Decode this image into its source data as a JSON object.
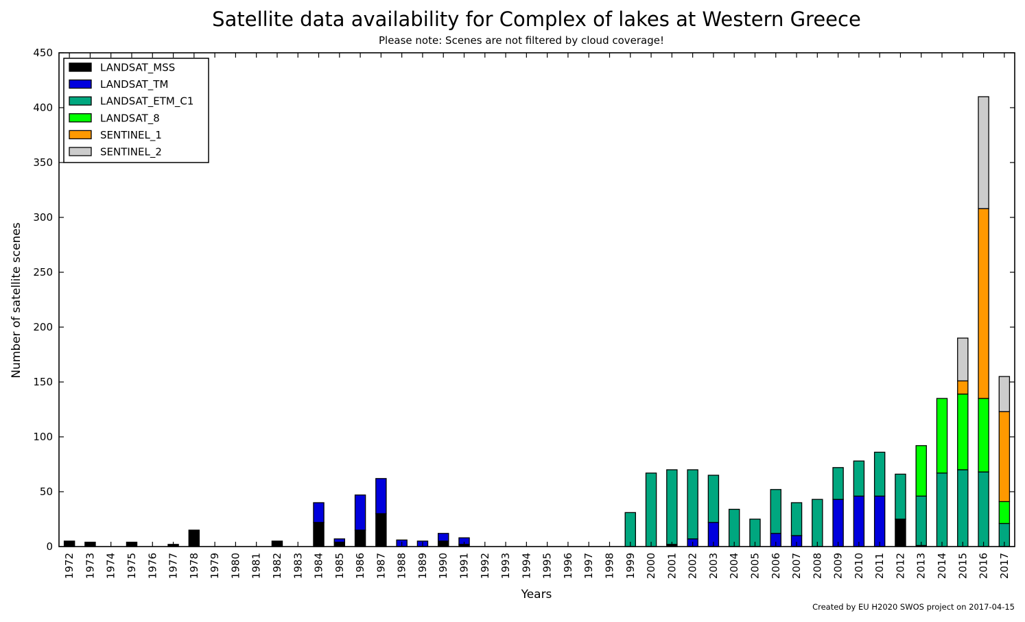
{
  "chart_data": {
    "type": "bar",
    "stacked": true,
    "title": "Satellite data availability for Complex of lakes at Western Greece",
    "subtitle": "Please note: Scenes are not filtered by cloud coverage!",
    "xlabel": "Years",
    "ylabel": "Number of satellite scenes",
    "ylim": [
      0,
      450
    ],
    "yticks": [
      0,
      50,
      100,
      150,
      200,
      250,
      300,
      350,
      400,
      450
    ],
    "legend_position": "top-left",
    "credit": "Created by EU H2020 SWOS project on 2017-04-15",
    "categories": [
      "1972",
      "1973",
      "1974",
      "1975",
      "1976",
      "1977",
      "1978",
      "1979",
      "1980",
      "1981",
      "1982",
      "1983",
      "1984",
      "1985",
      "1986",
      "1987",
      "1988",
      "1989",
      "1990",
      "1991",
      "1992",
      "1993",
      "1994",
      "1995",
      "1996",
      "1997",
      "1998",
      "1999",
      "2000",
      "2001",
      "2002",
      "2003",
      "2004",
      "2005",
      "2006",
      "2007",
      "2008",
      "2009",
      "2010",
      "2011",
      "2012",
      "2013",
      "2014",
      "2015",
      "2016",
      "2017"
    ],
    "series": [
      {
        "name": "LANDSAT_MSS",
        "color": "#000000",
        "values": [
          5,
          4,
          0,
          4,
          0,
          2,
          15,
          0,
          0,
          0,
          5,
          0,
          22,
          4,
          15,
          30,
          0,
          0,
          5,
          2,
          0,
          0,
          0,
          0,
          0,
          0,
          0,
          0,
          0,
          2,
          0,
          0,
          0,
          0,
          0,
          0,
          0,
          0,
          0,
          0,
          25,
          1,
          0,
          0,
          0,
          0
        ]
      },
      {
        "name": "LANDSAT_TM",
        "color": "#0000dd",
        "values": [
          0,
          0,
          0,
          0,
          0,
          0,
          0,
          0,
          0,
          0,
          0,
          0,
          18,
          3,
          32,
          32,
          6,
          5,
          7,
          6,
          0,
          0,
          0,
          0,
          0,
          0,
          0,
          0,
          0,
          0,
          7,
          22,
          0,
          0,
          12,
          10,
          0,
          43,
          46,
          46,
          0,
          0,
          0,
          0,
          0,
          0
        ]
      },
      {
        "name": "LANDSAT_ETM_C1",
        "color": "#00a77f",
        "values": [
          0,
          0,
          0,
          0,
          0,
          0,
          0,
          0,
          0,
          0,
          0,
          0,
          0,
          0,
          0,
          0,
          0,
          0,
          0,
          0,
          0,
          0,
          0,
          0,
          0,
          0,
          0,
          31,
          67,
          68,
          63,
          43,
          34,
          25,
          40,
          30,
          43,
          29,
          32,
          40,
          41,
          45,
          67,
          70,
          68,
          21
        ]
      },
      {
        "name": "LANDSAT_8",
        "color": "#00ff00",
        "values": [
          0,
          0,
          0,
          0,
          0,
          0,
          0,
          0,
          0,
          0,
          0,
          0,
          0,
          0,
          0,
          0,
          0,
          0,
          0,
          0,
          0,
          0,
          0,
          0,
          0,
          0,
          0,
          0,
          0,
          0,
          0,
          0,
          0,
          0,
          0,
          0,
          0,
          0,
          0,
          0,
          0,
          46,
          68,
          69,
          67,
          20
        ]
      },
      {
        "name": "SENTINEL_1",
        "color": "#ff9900",
        "values": [
          0,
          0,
          0,
          0,
          0,
          0,
          0,
          0,
          0,
          0,
          0,
          0,
          0,
          0,
          0,
          0,
          0,
          0,
          0,
          0,
          0,
          0,
          0,
          0,
          0,
          0,
          0,
          0,
          0,
          0,
          0,
          0,
          0,
          0,
          0,
          0,
          0,
          0,
          0,
          0,
          0,
          0,
          0,
          12,
          173,
          82
        ]
      },
      {
        "name": "SENTINEL_2",
        "color": "#cccccc",
        "values": [
          0,
          0,
          0,
          0,
          0,
          0,
          0,
          0,
          0,
          0,
          0,
          0,
          0,
          0,
          0,
          0,
          0,
          0,
          0,
          0,
          0,
          0,
          0,
          0,
          0,
          0,
          0,
          0,
          0,
          0,
          0,
          0,
          0,
          0,
          0,
          0,
          0,
          0,
          0,
          0,
          0,
          0,
          0,
          39,
          102,
          32
        ]
      }
    ]
  }
}
